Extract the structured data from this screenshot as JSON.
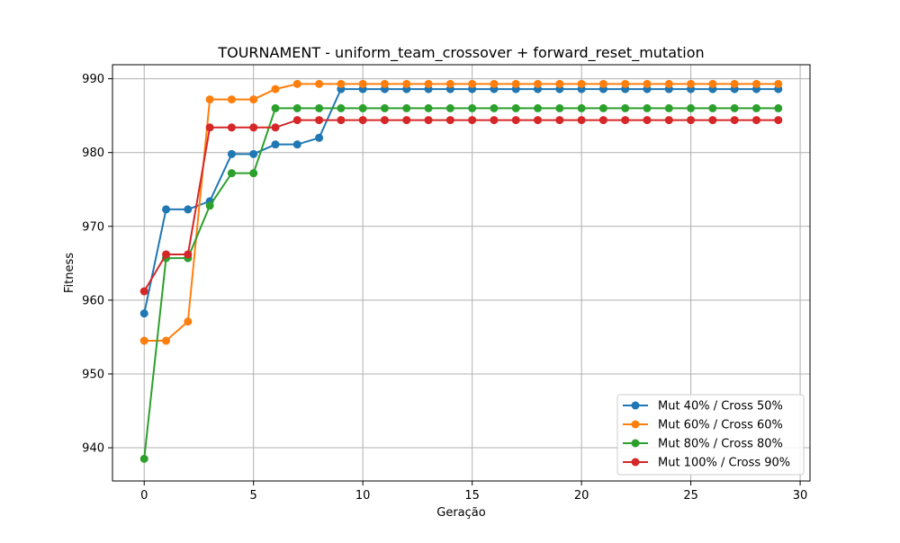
{
  "chart_data": {
    "type": "line",
    "title": "TOURNAMENT - uniform_team_crossover + forward_reset_mutation",
    "xlabel": "Geração",
    "ylabel": "Fitness",
    "xlim": [
      -1.45,
      30.45
    ],
    "ylim": [
      935.5,
      991.9
    ],
    "xticks": [
      0,
      5,
      10,
      15,
      20,
      25,
      30
    ],
    "yticks": [
      940,
      950,
      960,
      970,
      980,
      990
    ],
    "grid": true,
    "legend_position": "lower-right",
    "x": [
      0,
      1,
      2,
      3,
      4,
      5,
      6,
      7,
      8,
      9,
      10,
      11,
      12,
      13,
      14,
      15,
      16,
      17,
      18,
      19,
      20,
      21,
      22,
      23,
      24,
      25,
      26,
      27,
      28,
      29
    ],
    "series": [
      {
        "name": "Mut 40% / Cross 50%",
        "color": "#1f77b4",
        "values": [
          958.2,
          972.3,
          972.3,
          973.4,
          979.8,
          979.8,
          981.1,
          981.1,
          982.0,
          988.6,
          988.6,
          988.6,
          988.6,
          988.6,
          988.6,
          988.6,
          988.6,
          988.6,
          988.6,
          988.6,
          988.6,
          988.6,
          988.6,
          988.6,
          988.6,
          988.6,
          988.6,
          988.6,
          988.6,
          988.6
        ]
      },
      {
        "name": "Mut 60% / Cross 60%",
        "color": "#ff7f0e",
        "values": [
          954.5,
          954.5,
          957.1,
          987.2,
          987.2,
          987.2,
          988.6,
          989.3,
          989.3,
          989.3,
          989.3,
          989.3,
          989.3,
          989.3,
          989.3,
          989.3,
          989.3,
          989.3,
          989.3,
          989.3,
          989.3,
          989.3,
          989.3,
          989.3,
          989.3,
          989.3,
          989.3,
          989.3,
          989.3,
          989.3
        ]
      },
      {
        "name": "Mut 80% / Cross 80%",
        "color": "#2ca02c",
        "values": [
          938.5,
          965.7,
          965.7,
          972.8,
          977.2,
          977.2,
          986.0,
          986.0,
          986.0,
          986.0,
          986.0,
          986.0,
          986.0,
          986.0,
          986.0,
          986.0,
          986.0,
          986.0,
          986.0,
          986.0,
          986.0,
          986.0,
          986.0,
          986.0,
          986.0,
          986.0,
          986.0,
          986.0,
          986.0,
          986.0
        ]
      },
      {
        "name": "Mut 100% / Cross 90%",
        "color": "#d62728",
        "values": [
          961.2,
          966.2,
          966.2,
          983.4,
          983.4,
          983.4,
          983.4,
          984.4,
          984.4,
          984.4,
          984.4,
          984.4,
          984.4,
          984.4,
          984.4,
          984.4,
          984.4,
          984.4,
          984.4,
          984.4,
          984.4,
          984.4,
          984.4,
          984.4,
          984.4,
          984.4,
          984.4,
          984.4,
          984.4,
          984.4
        ]
      }
    ]
  }
}
